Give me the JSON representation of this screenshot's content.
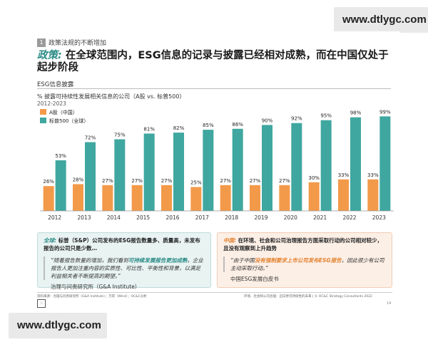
{
  "watermark": {
    "top": "www.dtlygc.com",
    "bottom": "www.dtlygc.com"
  },
  "slide": {
    "section_number": "1",
    "section_title": "政策法规的不断增加",
    "headline_prefix": "政策:",
    "headline": "在全球范围内，ESG信息的记录与披露已经相对成熟，而在中国仅处于起步阶段",
    "sub_heading": "ESG信息披露",
    "chart_title": "% 披露可持续性发展相关信息的公司（A股 vs. 标普500）",
    "chart_period": "2012-2023"
  },
  "chart_data": {
    "type": "bar",
    "categories": [
      "2012",
      "2013",
      "2014",
      "2015",
      "2016",
      "2017",
      "2018",
      "2019",
      "2020",
      "2021",
      "2022",
      "2023"
    ],
    "series": [
      {
        "name": "A股（中国）",
        "color": "#f39a4a",
        "values": [
          26,
          28,
          27,
          27,
          27,
          25,
          27,
          27,
          27,
          30,
          33,
          33
        ]
      },
      {
        "name": "标普500（全球）",
        "color": "#3fa79f",
        "values": [
          53,
          72,
          75,
          81,
          82,
          85,
          86,
          90,
          92,
          95,
          98,
          99
        ]
      }
    ],
    "value_suffix": "%",
    "ylim": [
      0,
      100
    ],
    "legend_position": "top-left",
    "grid": false
  },
  "boxes": {
    "left": {
      "tag": "全球:",
      "text": "标普（S&P）公司发布的ESG报告数量多、质量高，未发布报告的公司只是少数…",
      "quote_before": "“随着报告数量的增加，我们看到",
      "quote_highlight": "可持续发展报告更加成熟",
      "quote_after": "，企业报告人更加注重内容的实质性、可比性、平衡性和背景，以满足利益相关者不断提高的期望。”",
      "source": "治理与问责研究所（G&A Institute）"
    },
    "right": {
      "tag": "中国:",
      "text": "在环境、社会和公司治理报告方面采取行动的公司相对较少，且没有观察到上升趋势",
      "quote_before": "“由于中国",
      "quote_highlight": "没有强制要求上市公司发布ESG报告",
      "quote_after": "，因此很少有公司主动采取行动。”",
      "source": "中国ESG发展白皮书"
    }
  },
  "footer": {
    "left": "资料来源：治理与问责研究所（G&A Institute）；万得（Wind）；OC&C分析",
    "right": "环境、社会和公司治理：迈向更可持续性的未来 | © OC&C Strategy Consultants 2022",
    "page": "14",
    "logo": "::"
  }
}
